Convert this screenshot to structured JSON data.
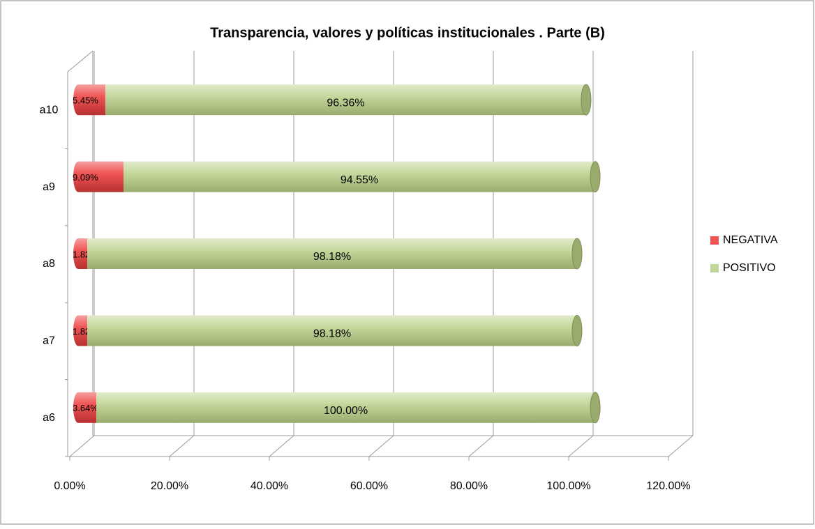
{
  "chart_data": {
    "type": "bar",
    "orientation": "horizontal",
    "stacked": true,
    "title": "Transparencia, valores y políticas institucionales . Parte (B)",
    "categories": [
      "a6",
      "a7",
      "a8",
      "a9",
      "a10"
    ],
    "series": [
      {
        "name": "NEGATIVA",
        "color": "#f05454",
        "values": [
          3.64,
          1.82,
          1.82,
          9.09,
          5.45
        ],
        "value_labels": [
          "3.64%",
          "1.82%",
          "1.82%",
          "9.09%",
          "5.45%"
        ]
      },
      {
        "name": "POSITIVO",
        "color": "#c4d79b",
        "values": [
          100,
          98.18,
          98.18,
          94.55,
          96.36
        ],
        "value_labels": [
          "100.00%",
          "98.18%",
          "98.18%",
          "94.55%",
          "96.36%"
        ]
      }
    ],
    "xlim": [
      0,
      120
    ],
    "xticks": [
      {
        "value": 0,
        "label": "0.00%"
      },
      {
        "value": 20,
        "label": "20.00%"
      },
      {
        "value": 40,
        "label": "40.00%"
      },
      {
        "value": 60,
        "label": "60.00%"
      },
      {
        "value": 80,
        "label": "80.00%"
      },
      {
        "value": 100,
        "label": "100.00%"
      },
      {
        "value": 120,
        "label": "120.00%"
      }
    ],
    "grid": true,
    "legend": "right"
  }
}
